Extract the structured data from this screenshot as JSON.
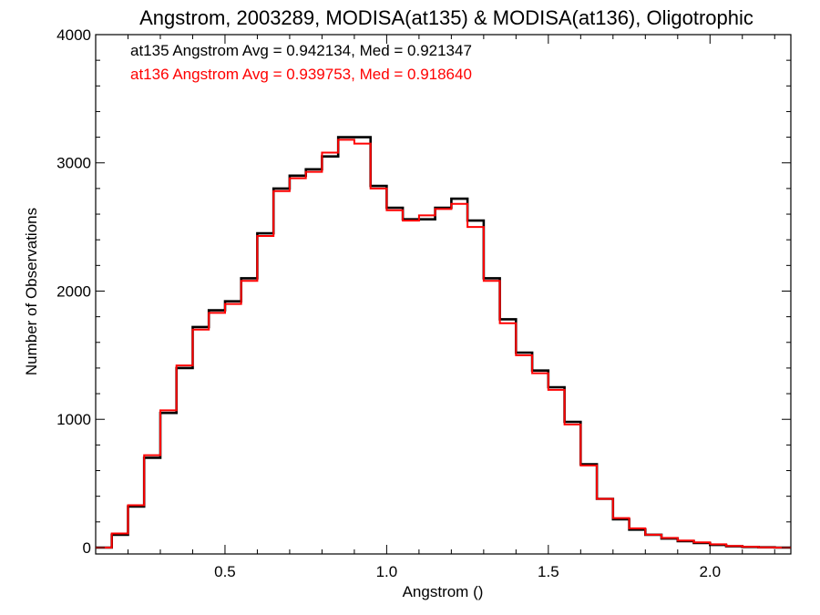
{
  "chart_data": {
    "type": "line",
    "title": "Angstrom, 2003289, MODISA(at135) & MODISA(at136), Oligotrophic",
    "xlabel": "Angstrom ()",
    "ylabel": "Number of Observations",
    "xlim": [
      0.1,
      2.25
    ],
    "ylim": [
      -50,
      4000
    ],
    "xticks": [
      0.5,
      1.0,
      1.5,
      2.0
    ],
    "xtick_labels": [
      "0.5",
      "1.0",
      "1.5",
      "2.0"
    ],
    "yticks": [
      0,
      1000,
      2000,
      3000,
      4000
    ],
    "ytick_labels": [
      "0",
      "1000",
      "2000",
      "3000",
      "4000"
    ],
    "grid": false,
    "step": true,
    "annotations": [
      {
        "text": "at135 Angstrom Avg = 0.942134, Med = 0.921347",
        "color": "#000000"
      },
      {
        "text": "at136 Angstrom Avg = 0.939753, Med = 0.918640",
        "color": "#ff0000"
      }
    ],
    "series": [
      {
        "color": "#000000",
        "x": [
          0.1,
          0.15,
          0.2,
          0.25,
          0.3,
          0.35,
          0.4,
          0.45,
          0.5,
          0.55,
          0.6,
          0.65,
          0.7,
          0.75,
          0.8,
          0.85,
          0.9,
          0.95,
          1.0,
          1.05,
          1.1,
          1.15,
          1.2,
          1.25,
          1.3,
          1.35,
          1.4,
          1.45,
          1.5,
          1.55,
          1.6,
          1.65,
          1.7,
          1.75,
          1.8,
          1.85,
          1.9,
          1.95,
          2.0,
          2.05,
          2.1,
          2.15,
          2.2,
          2.25
        ],
        "y": [
          0,
          100,
          320,
          700,
          1050,
          1400,
          1720,
          1850,
          1920,
          2100,
          2450,
          2800,
          2900,
          2950,
          3050,
          3200,
          3200,
          2820,
          2650,
          2560,
          2560,
          2650,
          2720,
          2550,
          2100,
          1780,
          1520,
          1380,
          1250,
          980,
          650,
          380,
          220,
          140,
          100,
          70,
          50,
          35,
          20,
          10,
          5,
          2,
          0,
          0
        ]
      },
      {
        "color": "#ff0000",
        "x": [
          0.1,
          0.15,
          0.2,
          0.25,
          0.3,
          0.35,
          0.4,
          0.45,
          0.5,
          0.55,
          0.6,
          0.65,
          0.7,
          0.75,
          0.8,
          0.85,
          0.9,
          0.95,
          1.0,
          1.05,
          1.1,
          1.15,
          1.2,
          1.25,
          1.3,
          1.35,
          1.4,
          1.45,
          1.5,
          1.55,
          1.6,
          1.65,
          1.7,
          1.75,
          1.8,
          1.85,
          1.9,
          1.95,
          2.0,
          2.05,
          2.1,
          2.15,
          2.2,
          2.25
        ],
        "y": [
          0,
          110,
          330,
          720,
          1070,
          1420,
          1700,
          1830,
          1900,
          2080,
          2430,
          2780,
          2880,
          2930,
          3080,
          3180,
          3150,
          2800,
          2630,
          2550,
          2590,
          2640,
          2680,
          2500,
          2080,
          1750,
          1500,
          1360,
          1230,
          960,
          640,
          380,
          230,
          150,
          100,
          75,
          55,
          40,
          25,
          12,
          6,
          2,
          0,
          0
        ]
      }
    ]
  }
}
